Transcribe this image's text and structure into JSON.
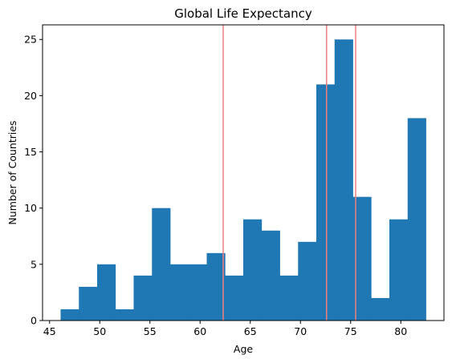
{
  "chart_data": {
    "type": "bar",
    "title": "Global Life Expectancy",
    "xlabel": "Age",
    "ylabel": "Number of Countries",
    "bin_edges": [
      46.1,
      47.92,
      49.74,
      51.56,
      53.38,
      55.2,
      57.02,
      58.84,
      60.66,
      62.48,
      64.3,
      66.12,
      67.94,
      69.76,
      71.58,
      73.4,
      75.22,
      77.04,
      78.86,
      80.68,
      82.5
    ],
    "values": [
      1,
      3,
      5,
      1,
      4,
      10,
      5,
      5,
      6,
      4,
      9,
      8,
      4,
      7,
      21,
      25,
      11,
      2,
      9,
      18
    ],
    "xlim": [
      44.3,
      84.3
    ],
    "ylim": [
      0,
      26.3
    ],
    "xticks": [
      45,
      50,
      55,
      60,
      65,
      70,
      75,
      80
    ],
    "yticks": [
      0,
      5,
      10,
      15,
      20,
      25
    ],
    "reference_lines_x": [
      62.3,
      72.6,
      75.5
    ],
    "bar_color": "#1f77b4",
    "line_color": "#f08080"
  }
}
